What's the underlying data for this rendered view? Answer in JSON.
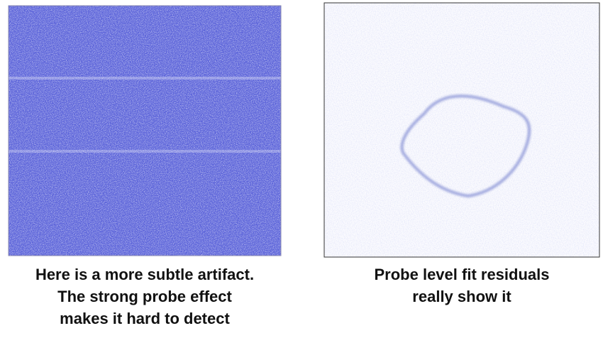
{
  "panels": [
    {
      "caption": [
        "Here is a more subtle artifact.",
        "The strong probe effect",
        "makes it hard to detect"
      ]
    },
    {
      "caption": [
        "Probe level fit residuals",
        "really show it"
      ]
    }
  ]
}
